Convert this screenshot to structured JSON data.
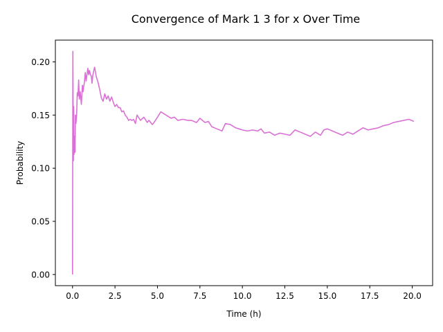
{
  "chart_data": {
    "type": "line",
    "title": "Convergence of Mark 1 3 for x Over Time",
    "xlabel": "Time (h)",
    "ylabel": "Probability",
    "xlim": [
      -1.01,
      21.2
    ],
    "ylim": [
      -0.0105,
      0.2205
    ],
    "x_ticks": [
      0.0,
      2.5,
      5.0,
      7.5,
      10.0,
      12.5,
      15.0,
      17.5,
      20.0
    ],
    "x_tick_labels": [
      "0.0",
      "2.5",
      "5.0",
      "7.5",
      "10.0",
      "12.5",
      "15.0",
      "17.5",
      "20.0"
    ],
    "y_ticks": [
      0.0,
      0.05,
      0.1,
      0.15,
      0.2
    ],
    "y_tick_labels": [
      "0.00",
      "0.05",
      "0.10",
      "0.15",
      "0.20"
    ],
    "grid": false,
    "line_color": "#da70d6",
    "series": [
      {
        "x": [
          0.0,
          0.02,
          0.05,
          0.07,
          0.09,
          0.12,
          0.15,
          0.17,
          0.2,
          0.24,
          0.28,
          0.32,
          0.36,
          0.4,
          0.45,
          0.52,
          0.58,
          0.62,
          0.65,
          0.7,
          0.75,
          0.8,
          0.85,
          0.9,
          0.95,
          1.0,
          1.05,
          1.1,
          1.15,
          1.2,
          1.3,
          1.4,
          1.5,
          1.6,
          1.7,
          1.8,
          1.9,
          2.0,
          2.1,
          2.2,
          2.3,
          2.4,
          2.5,
          2.6,
          2.7,
          2.8,
          2.9,
          3.0,
          3.1,
          3.2,
          3.3,
          3.4,
          3.5,
          3.6,
          3.7,
          3.8,
          4.0,
          4.2,
          4.4,
          4.5,
          4.7,
          4.8,
          5.0,
          5.2,
          5.5,
          5.8,
          6.0,
          6.2,
          6.5,
          6.8,
          7.0,
          7.3,
          7.5,
          7.8,
          8.0,
          8.2,
          8.5,
          8.8,
          9.0,
          9.3,
          9.6,
          9.8,
          10.0,
          10.3,
          10.6,
          10.9,
          11.1,
          11.3,
          11.6,
          11.9,
          12.2,
          12.5,
          12.8,
          13.1,
          13.4,
          13.7,
          14.0,
          14.3,
          14.6,
          14.8,
          15.0,
          15.3,
          15.6,
          15.9,
          16.2,
          16.5,
          16.8,
          17.1,
          17.4,
          17.7,
          18.0,
          18.3,
          18.6,
          18.9,
          19.2,
          19.5,
          19.8,
          20.1
        ],
        "y": [
          0.0,
          0.21,
          0.107,
          0.158,
          0.113,
          0.13,
          0.115,
          0.15,
          0.142,
          0.15,
          0.171,
          0.168,
          0.183,
          0.165,
          0.172,
          0.16,
          0.178,
          0.172,
          0.176,
          0.181,
          0.19,
          0.182,
          0.188,
          0.194,
          0.188,
          0.192,
          0.188,
          0.187,
          0.18,
          0.188,
          0.195,
          0.186,
          0.181,
          0.174,
          0.166,
          0.163,
          0.17,
          0.165,
          0.168,
          0.163,
          0.167,
          0.162,
          0.158,
          0.16,
          0.157,
          0.157,
          0.153,
          0.154,
          0.15,
          0.148,
          0.145,
          0.146,
          0.145,
          0.146,
          0.142,
          0.15,
          0.145,
          0.148,
          0.143,
          0.145,
          0.141,
          0.143,
          0.148,
          0.153,
          0.15,
          0.147,
          0.148,
          0.145,
          0.146,
          0.145,
          0.145,
          0.143,
          0.147,
          0.143,
          0.144,
          0.139,
          0.137,
          0.135,
          0.142,
          0.141,
          0.138,
          0.137,
          0.136,
          0.135,
          0.136,
          0.135,
          0.137,
          0.133,
          0.134,
          0.131,
          0.133,
          0.132,
          0.131,
          0.136,
          0.134,
          0.132,
          0.13,
          0.134,
          0.131,
          0.136,
          0.137,
          0.135,
          0.133,
          0.131,
          0.134,
          0.132,
          0.135,
          0.138,
          0.136,
          0.137,
          0.138,
          0.14,
          0.141,
          0.143,
          0.144,
          0.145,
          0.146,
          0.144
        ]
      }
    ]
  }
}
